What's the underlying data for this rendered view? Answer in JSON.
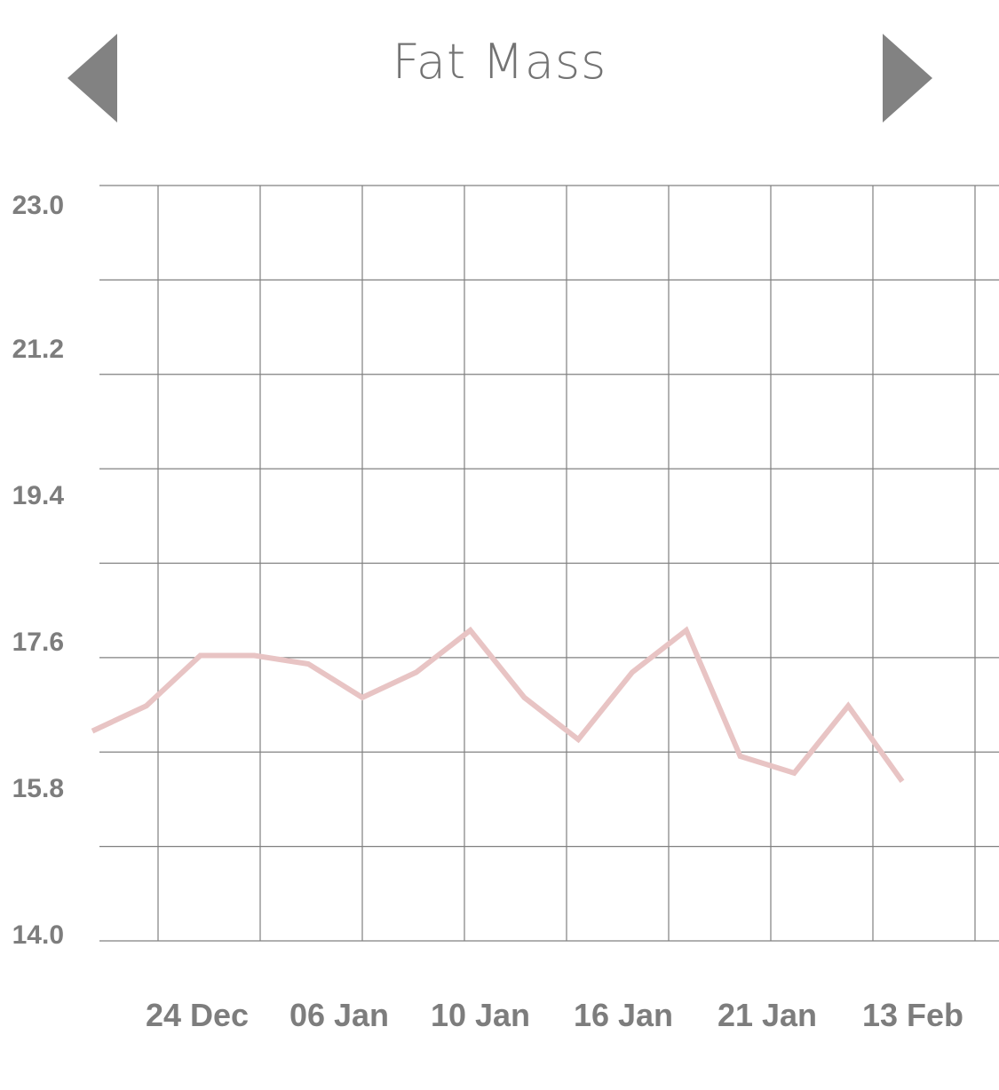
{
  "header": {
    "title": "Fat Mass",
    "prev_icon": "triangle-left-icon",
    "next_icon": "triangle-right-icon"
  },
  "colors": {
    "line": "#e8c4c4",
    "grid": "#808080",
    "nav": "#828282",
    "label": "#7d7d7d"
  },
  "chart_data": {
    "type": "line",
    "title": "Fat Mass",
    "xlabel": "",
    "ylabel": "",
    "grid": true,
    "legend": "none",
    "ylim": [
      14.0,
      23.0
    ],
    "yticks": [
      "23.0",
      "21.2",
      "19.4",
      "17.6",
      "15.8",
      "14.0"
    ],
    "xticks": [
      "24 Dec",
      "06 Jan",
      "10 Jan",
      "16 Jan",
      "21 Jan",
      "13 Feb"
    ],
    "series": [
      {
        "values": [
          16.5,
          16.8,
          17.4,
          17.4,
          17.3,
          16.9,
          17.2,
          17.7,
          16.9,
          16.4,
          17.2,
          17.7,
          16.2,
          16.0,
          16.8,
          15.9
        ]
      }
    ]
  }
}
